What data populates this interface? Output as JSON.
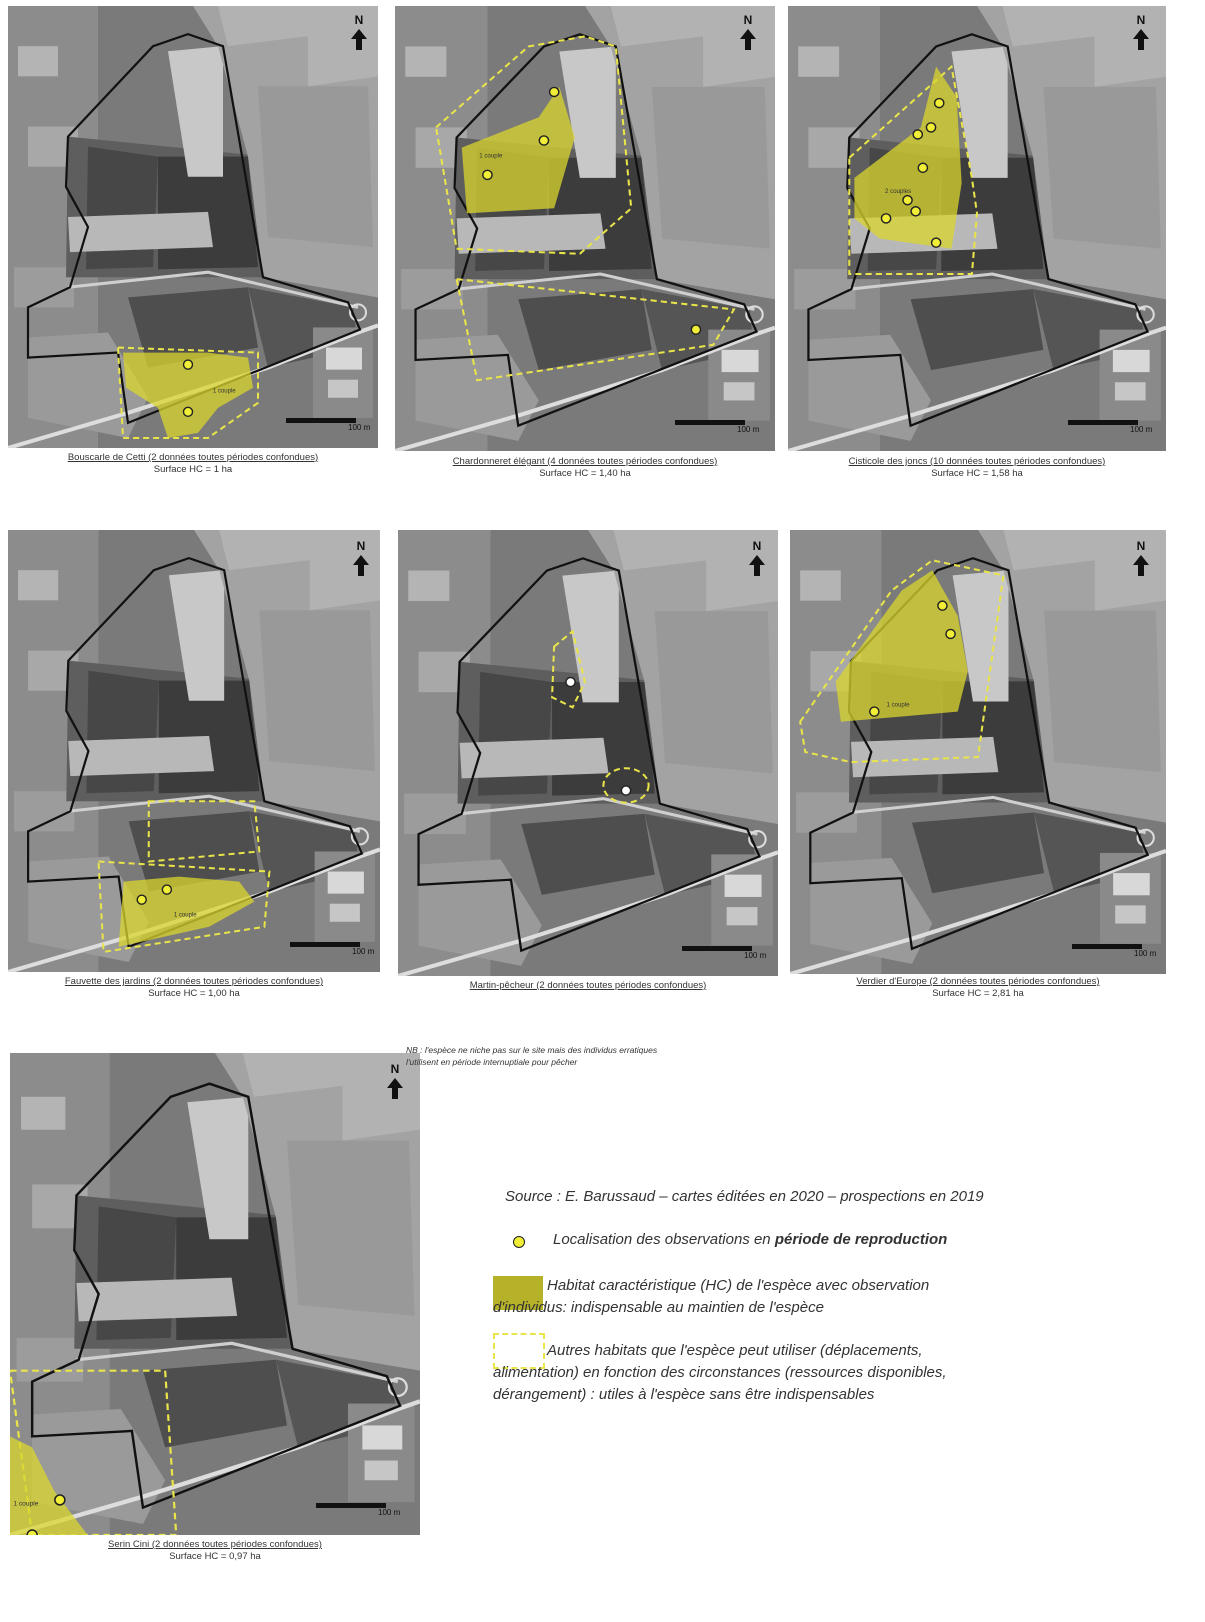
{
  "panels": [
    {
      "caption": "Bouscarle de Cetti (2 données toutes périodes confondues)",
      "surface": "Surface HC = 1 ha",
      "scale_label": "100 m",
      "habitat_label": "1 couple"
    },
    {
      "caption": "Chardonneret élégant (4 données toutes périodes confondues)",
      "surface": "Surface HC = 1,40 ha",
      "scale_label": "100 m",
      "habitat_label": "1 couple"
    },
    {
      "caption": "Cisticole des joncs (10 données toutes périodes confondues)",
      "surface": "Surface HC = 1,58 ha",
      "scale_label": "100 m",
      "habitat_label": "2 couples"
    },
    {
      "caption": "Fauvette des jardins (2 données toutes périodes confondues)",
      "surface": "Surface HC = 1,00 ha",
      "scale_label": "100 m",
      "habitat_label": "1 couple"
    },
    {
      "caption": "Martin-pêcheur (2 données toutes périodes confondues)",
      "surface": "",
      "scale_label": "100 m",
      "habitat_label": ""
    },
    {
      "caption": "Verdier d'Europe (2 données toutes périodes confondues)",
      "surface": "Surface HC = 2,81 ha",
      "scale_label": "100 m",
      "habitat_label": "1 couple"
    },
    {
      "caption": "Serin Cini (2 données toutes périodes confondues)",
      "surface": "Surface HC = 0,97 ha",
      "scale_label": "100 m",
      "habitat_label": "1 couple"
    }
  ],
  "north_label": "N",
  "nb_note": {
    "line1": "NB : l'espèce ne niche pas sur le site mais des individus erratiques",
    "line2": "l'utilisent en période internuptiale pour pêcher"
  },
  "legend": {
    "source": "Source : E. Barussaud – cartes éditées en 2020 – prospections en 2019",
    "obs_prefix": "Localisation des observations en ",
    "obs_bold": "période de reproduction",
    "habitat_line1": "Habitat caractéristique (HC) de l'espèce avec observation",
    "habitat_line2": "d'individus: indispensable au maintien de l'espèce",
    "other_line1": "Autres habitats que l'espèce peut utiliser (déplacements,",
    "other_line2": "alimentation) en fonction des circonstances (ressources disponibles,",
    "other_line3": "dérangement) : utiles à l'espèce sans être indispensables"
  },
  "colors": {
    "habitat_fill": "#d9d62e",
    "observation_dot": "#f1ee37",
    "other_habitat_dash": "#e8e44a",
    "site_boundary": "#111111"
  }
}
